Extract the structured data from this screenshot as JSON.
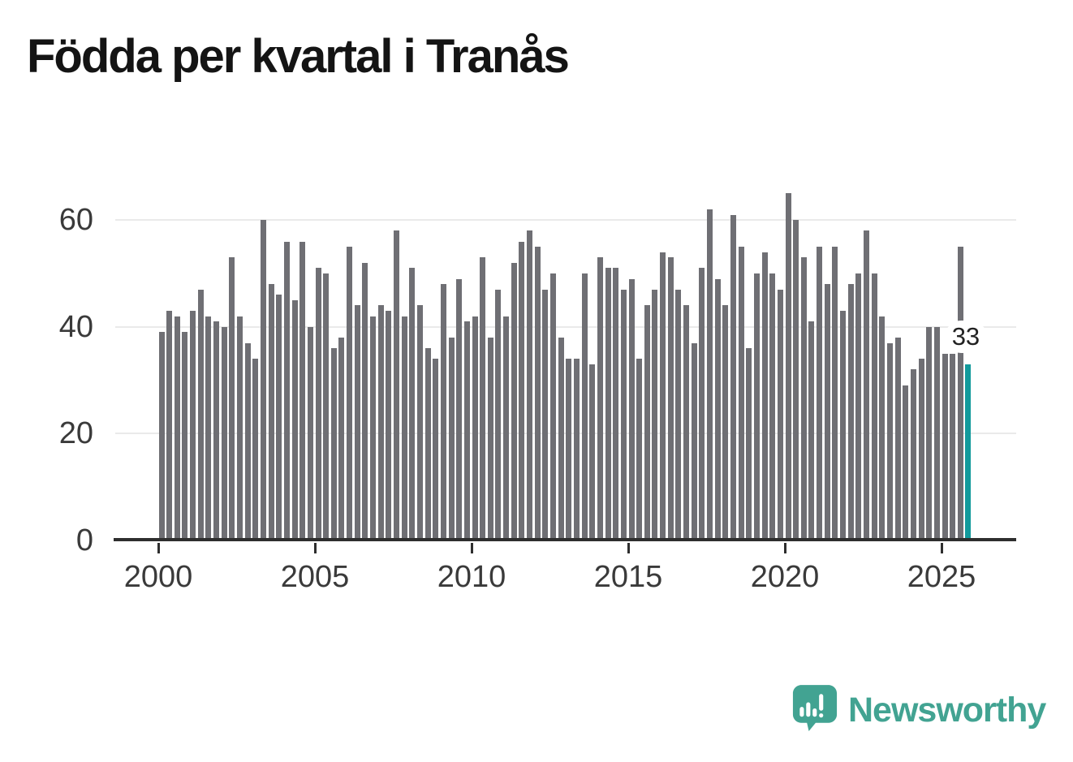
{
  "title": "Födda per kvartal i Tranås",
  "chart_data": {
    "type": "bar",
    "title": "Födda per kvartal i Tranås",
    "start_year": 2000,
    "start_quarter": 1,
    "values": [
      39,
      43,
      42,
      39,
      43,
      47,
      42,
      41,
      40,
      53,
      42,
      37,
      34,
      60,
      48,
      46,
      56,
      45,
      56,
      40,
      51,
      50,
      36,
      38,
      55,
      44,
      52,
      42,
      44,
      43,
      58,
      42,
      51,
      44,
      36,
      34,
      48,
      38,
      49,
      41,
      42,
      53,
      38,
      47,
      42,
      52,
      56,
      58,
      55,
      47,
      50,
      38,
      34,
      34,
      50,
      33,
      53,
      51,
      51,
      47,
      49,
      34,
      44,
      47,
      54,
      53,
      47,
      44,
      37,
      51,
      62,
      49,
      44,
      61,
      55,
      36,
      50,
      54,
      50,
      47,
      65,
      60,
      53,
      41,
      55,
      48,
      55,
      43,
      48,
      50,
      58,
      50,
      42,
      37,
      38,
      29,
      32,
      34,
      40,
      40,
      35,
      35,
      55,
      33
    ],
    "x_tick_labels": [
      "2000",
      "2005",
      "2010",
      "2015",
      "2020",
      "2025"
    ],
    "y_ticks": [
      0,
      20,
      40,
      60
    ],
    "ylim": [
      0,
      66
    ],
    "grid": true,
    "legend": "none",
    "highlight": {
      "index": 103,
      "period": "2025 Q4",
      "value": 33,
      "label": "33"
    }
  },
  "colors": {
    "bar": "#6f6f74",
    "highlight": "#129a9c",
    "gridline": "#eaeaea",
    "axis": "#2e2e2e",
    "axis_label": "#3a3a3a",
    "title": "#141414",
    "brand": "#42a392",
    "annotation_bg": "#ffffff",
    "annotation_text": "#222222"
  },
  "branding": {
    "name": "Newsworthy"
  }
}
